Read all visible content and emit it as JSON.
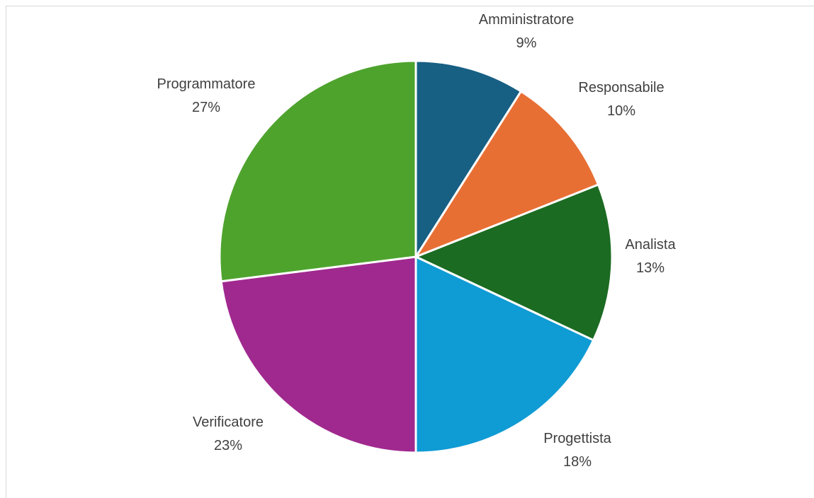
{
  "chart_data": {
    "type": "pie",
    "title": "",
    "categories": [
      "Amministratore",
      "Responsabile",
      "Analista",
      "Progettista",
      "Verificatore",
      "Programmatore"
    ],
    "values": [
      9,
      10,
      13,
      18,
      23,
      27
    ],
    "percent_labels": [
      "9%",
      "10%",
      "13%",
      "18%",
      "23%",
      "27%"
    ],
    "colors": [
      "#175f83",
      "#e86f34",
      "#1b6b22",
      "#0f9bd4",
      "#a0298f",
      "#4ea32d"
    ],
    "start_angle_deg": 0,
    "direction": "clockwise",
    "legend": "none",
    "data_labels": "outside"
  }
}
